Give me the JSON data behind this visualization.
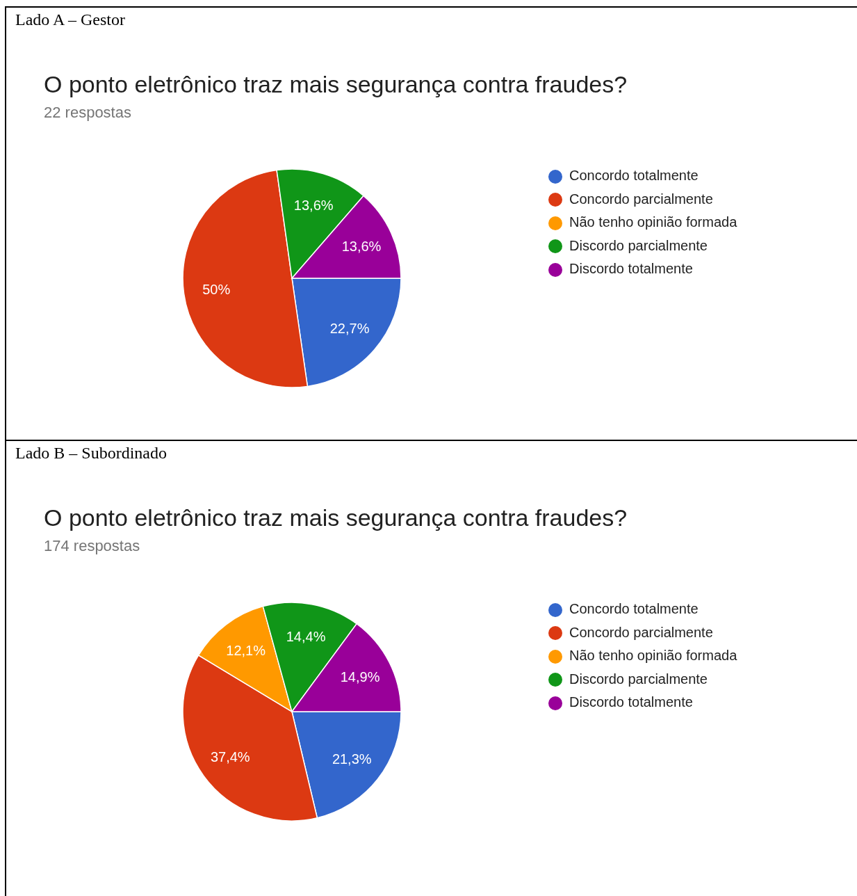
{
  "chart_data": [
    {
      "type": "pie",
      "title": "O ponto eletrônico traz mais segurança contra fraudes?",
      "subtitle": "22 respostas",
      "annotations": [
        "Lado A – Gestor"
      ],
      "categories": [
        "Concordo totalmente",
        "Concordo parcialmente",
        "Não tenho opinião formada",
        "Discordo parcialmente",
        "Discordo totalmente"
      ],
      "values": [
        22.7,
        50,
        0,
        13.6,
        13.6
      ],
      "colors": [
        "#3366cc",
        "#dc3912",
        "#ff9900",
        "#109618",
        "#990099"
      ],
      "value_labels": [
        "22,7%",
        "50%",
        null,
        "13,6%",
        "13,6%"
      ],
      "legend": "top right"
    },
    {
      "type": "pie",
      "title": "O ponto eletrônico traz mais segurança contra fraudes?",
      "subtitle": "174 respostas",
      "annotations": [
        "Lado B – Subordinado"
      ],
      "categories": [
        "Concordo totalmente",
        "Concordo parcialmente",
        "Não tenho opinião formada",
        "Discordo parcialmente",
        "Discordo totalmente"
      ],
      "values": [
        21.3,
        37.4,
        12.1,
        14.4,
        14.9
      ],
      "colors": [
        "#3366cc",
        "#dc3912",
        "#ff9900",
        "#109618",
        "#990099"
      ],
      "value_labels": [
        "21,3%",
        "37,4%",
        "12,1%",
        "14,4%",
        "14,9%"
      ],
      "legend": "top right"
    }
  ]
}
